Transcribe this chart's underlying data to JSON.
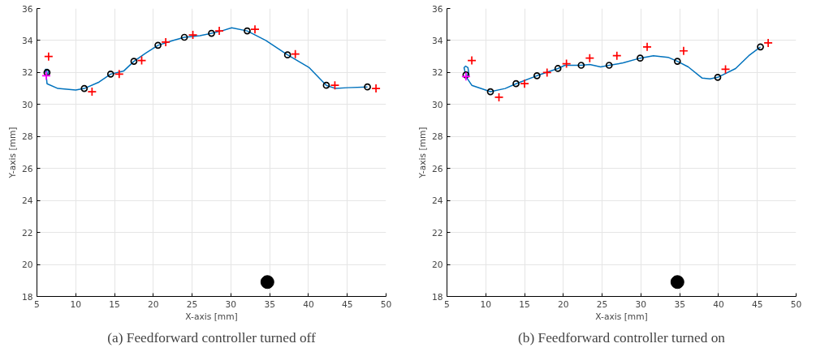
{
  "chart_data": [
    {
      "type": "scatter",
      "title": "(a) Feedforward controller turned off",
      "xlabel": "X-axis [mm]",
      "ylabel": "Y-axis [mm]",
      "xlim": [
        5,
        50
      ],
      "ylim": [
        18,
        36
      ],
      "xticks": [
        5,
        10,
        15,
        20,
        25,
        30,
        35,
        40,
        45,
        50
      ],
      "yticks": [
        18,
        20,
        22,
        24,
        26,
        28,
        30,
        32,
        34,
        36
      ],
      "grid": true,
      "series": [
        {
          "type": "line",
          "color": "#0072bd",
          "line_style": "solid",
          "x": [
            6.3,
            6.1,
            6.0,
            6.2,
            6.4,
            6.5,
            6.3,
            6.2,
            6.3,
            7.7,
            10.0,
            11.1,
            13.0,
            14.5,
            16.2,
            17.5,
            19.0,
            20.6,
            22.5,
            24.0,
            26.0,
            27.5,
            28.8,
            30.1,
            32.1,
            34.5,
            37.3,
            40.1,
            42.3,
            43.5,
            45.0,
            47.6
          ],
          "values": [
            32.0,
            32.2,
            32.0,
            32.2,
            32.2,
            32.0,
            31.9,
            31.8,
            31.3,
            31.0,
            30.9,
            31.0,
            31.4,
            31.9,
            32.1,
            32.7,
            33.2,
            33.7,
            34.0,
            34.2,
            34.3,
            34.45,
            34.6,
            34.8,
            34.6,
            34.0,
            33.1,
            32.3,
            31.2,
            31.0,
            31.05,
            31.1
          ]
        },
        {
          "color": "#000000",
          "marker": "circle",
          "x": [
            6.3,
            11.1,
            14.5,
            17.5,
            20.6,
            24.0,
            27.5,
            32.1,
            37.3,
            42.3,
            47.6
          ],
          "values": [
            32.0,
            31.0,
            31.9,
            32.7,
            33.7,
            34.2,
            34.45,
            34.6,
            33.1,
            31.2,
            31.1
          ]
        },
        {
          "color": "#ff0000",
          "marker": "cross",
          "x": [
            6.5,
            12.1,
            15.6,
            18.5,
            21.6,
            25.1,
            28.5,
            33.1,
            38.3,
            43.4,
            48.7
          ],
          "values": [
            33.0,
            30.8,
            31.9,
            32.75,
            33.9,
            34.35,
            34.6,
            34.7,
            33.15,
            31.2,
            31.0
          ]
        },
        {
          "color": "#ff00ff",
          "marker": "cross",
          "x": [
            6.2
          ],
          "values": [
            31.8
          ]
        },
        {
          "type": "scatter",
          "color": "#000000",
          "marker": "dot",
          "x": [
            34.7
          ],
          "values": [
            18.9
          ]
        }
      ]
    },
    {
      "type": "scatter",
      "title": "(b) Feedforward controller turned on",
      "xlabel": "X-axis [mm]",
      "ylabel": "Y-axis [mm]",
      "xlim": [
        5,
        50
      ],
      "ylim": [
        18,
        36
      ],
      "xticks": [
        5,
        10,
        15,
        20,
        25,
        30,
        35,
        40,
        45,
        50
      ],
      "yticks": [
        18,
        20,
        22,
        24,
        26,
        28,
        30,
        32,
        34,
        36
      ],
      "grid": true,
      "series": [
        {
          "type": "line",
          "color": "#0072bd",
          "line_style": "solid",
          "x": [
            7.45,
            7.3,
            7.2,
            7.4,
            7.7,
            7.8,
            7.6,
            7.45,
            8.2,
            10.6,
            12.5,
            13.9,
            16.6,
            19.3,
            20.2,
            22.3,
            23.4,
            24.8,
            25.9,
            27.7,
            29.9,
            31.6,
            33.5,
            34.7,
            36.1,
            37.9,
            38.9,
            39.9,
            42.2,
            43.9,
            45.4
          ],
          "values": [
            31.85,
            32.1,
            32.3,
            32.4,
            32.3,
            32.0,
            31.8,
            31.75,
            31.2,
            30.8,
            31.0,
            31.3,
            31.8,
            32.25,
            32.45,
            32.45,
            32.5,
            32.35,
            32.45,
            32.6,
            32.9,
            33.05,
            32.95,
            32.7,
            32.35,
            31.65,
            31.6,
            31.7,
            32.25,
            33.05,
            33.6
          ]
        },
        {
          "color": "#000000",
          "marker": "circle",
          "x": [
            7.45,
            10.6,
            13.9,
            16.6,
            19.3,
            22.3,
            25.9,
            29.9,
            34.7,
            39.9,
            45.4
          ],
          "values": [
            31.85,
            30.8,
            31.3,
            31.8,
            32.25,
            32.45,
            32.45,
            32.9,
            32.7,
            31.7,
            33.6
          ]
        },
        {
          "color": "#ff0000",
          "marker": "cross",
          "x": [
            8.2,
            11.7,
            15.0,
            17.9,
            20.4,
            23.4,
            26.9,
            30.8,
            35.5,
            40.9,
            46.4
          ],
          "values": [
            32.75,
            30.45,
            31.3,
            32.0,
            32.55,
            32.9,
            33.05,
            33.6,
            33.35,
            32.2,
            33.85
          ]
        },
        {
          "color": "#ff00ff",
          "marker": "cross",
          "x": [
            7.45
          ],
          "values": [
            31.75
          ]
        },
        {
          "type": "scatter",
          "color": "#000000",
          "marker": "dot",
          "x": [
            34.7
          ],
          "values": [
            18.9
          ]
        }
      ]
    }
  ]
}
